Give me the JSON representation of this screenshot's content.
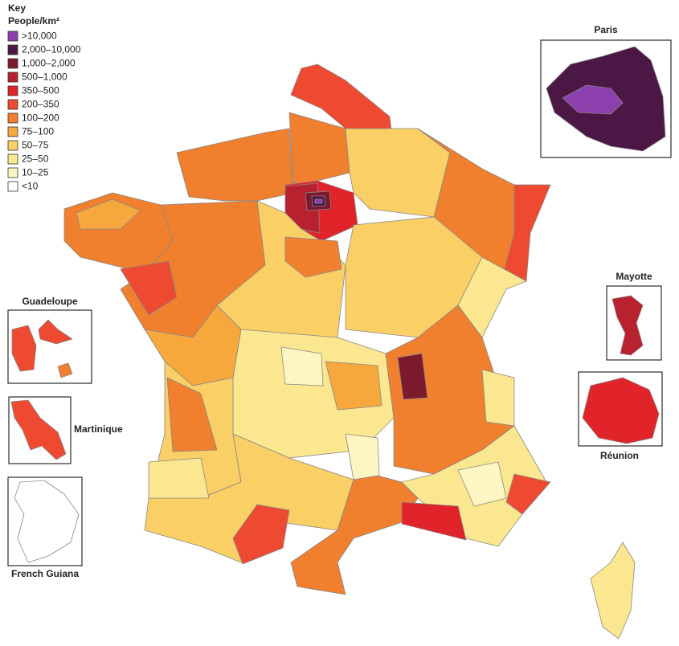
{
  "key": {
    "title": "Key",
    "unit": "People/km²",
    "items": [
      {
        "label": ">10,000",
        "color": "#8e3fae"
      },
      {
        "label": "2,000–10,000",
        "color": "#4b1745"
      },
      {
        "label": "1,000–2,000",
        "color": "#7b1a2c"
      },
      {
        "label": "500–1,000",
        "color": "#b8222e"
      },
      {
        "label": "350–500",
        "color": "#e1232a"
      },
      {
        "label": "200–350",
        "color": "#ee4a32"
      },
      {
        "label": "100–200",
        "color": "#f07f2e"
      },
      {
        "label": "75–100",
        "color": "#f6a83d"
      },
      {
        "label": "50–75",
        "color": "#f9cf66"
      },
      {
        "label": "25–50",
        "color": "#fbe78f"
      },
      {
        "label": "10–25",
        "color": "#fdf6c2"
      },
      {
        "label": "<10",
        "color": "#ffffff"
      }
    ]
  },
  "insets": [
    {
      "label": "Paris"
    },
    {
      "label": "Guadeloupe"
    },
    {
      "label": "Martinique"
    },
    {
      "label": "French Guiana"
    },
    {
      "label": "Mayotte"
    },
    {
      "label": "Réunion"
    }
  ]
}
